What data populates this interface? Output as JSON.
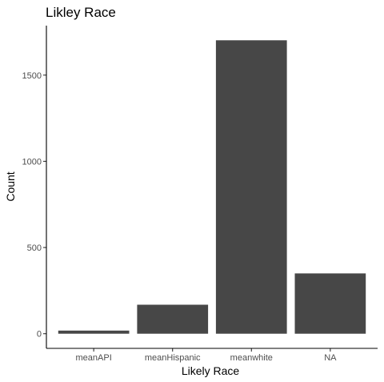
{
  "chart_data": {
    "type": "bar",
    "title": "Likley Race",
    "xlabel": "Likely Race",
    "ylabel": "Count",
    "categories": [
      "meanAPI",
      "meanHispanic",
      "meanwhite",
      "NA"
    ],
    "values": [
      18,
      168,
      1702,
      350
    ],
    "yticks": [
      0,
      500,
      1000,
      1500
    ],
    "ylim": [
      -85,
      1787
    ],
    "bar_color": "#474747",
    "grid": false,
    "legend": "none"
  }
}
